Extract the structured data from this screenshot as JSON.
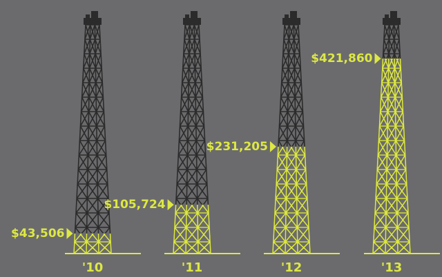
{
  "chart_data": {
    "type": "derrick",
    "categories": [
      "'10",
      "'11",
      "'12",
      "'13"
    ],
    "values": [
      43506,
      105724,
      231205,
      421860
    ],
    "value_labels": [
      "$43,506",
      "$105,724",
      "$231,205",
      "$421,860"
    ],
    "color": "#dde843"
  }
}
